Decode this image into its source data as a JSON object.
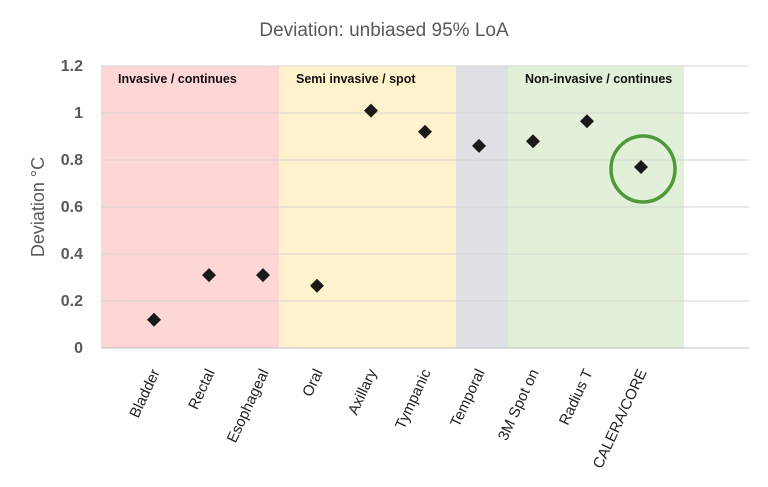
{
  "chart_data": {
    "type": "scatter",
    "title": "Deviation: unbiased 95% LoA",
    "ylabel": "Deviation °C",
    "xlabel": "",
    "ylim": [
      0,
      1.2
    ],
    "yticks": [
      "0",
      "0.2",
      "0.4",
      "0.6",
      "0.8",
      "1",
      "1.2"
    ],
    "grid": true,
    "categories": [
      "Bladder",
      "Rectal",
      "Esophageal",
      "Oral",
      "Axillary",
      "Tympanic",
      "Temporal",
      "3M Spot on",
      "Radius T",
      "CALERA/CORE"
    ],
    "values": [
      0.12,
      0.31,
      0.31,
      0.265,
      1.01,
      0.92,
      0.86,
      0.88,
      0.965,
      0.77
    ],
    "marker": "diamond",
    "marker_color": "#1a1a1a",
    "regions": [
      {
        "label": "Invasive  / continues",
        "from_category": 0,
        "to_category": 2,
        "color": "#ffd6d6"
      },
      {
        "label": "Semi invasive  / spot",
        "from_category": 3,
        "to_category": 5,
        "color": "#fff2cc"
      },
      {
        "label": "",
        "from_category": 6,
        "to_category": 6,
        "color": "#dfe1e6"
      },
      {
        "label": "Non-invasive  / continues",
        "from_category": 7,
        "to_category": 9,
        "color": "#e2efd9"
      }
    ],
    "highlight": {
      "category": "CALERA/CORE",
      "shape": "circle",
      "color": "#4e9a3a"
    }
  }
}
